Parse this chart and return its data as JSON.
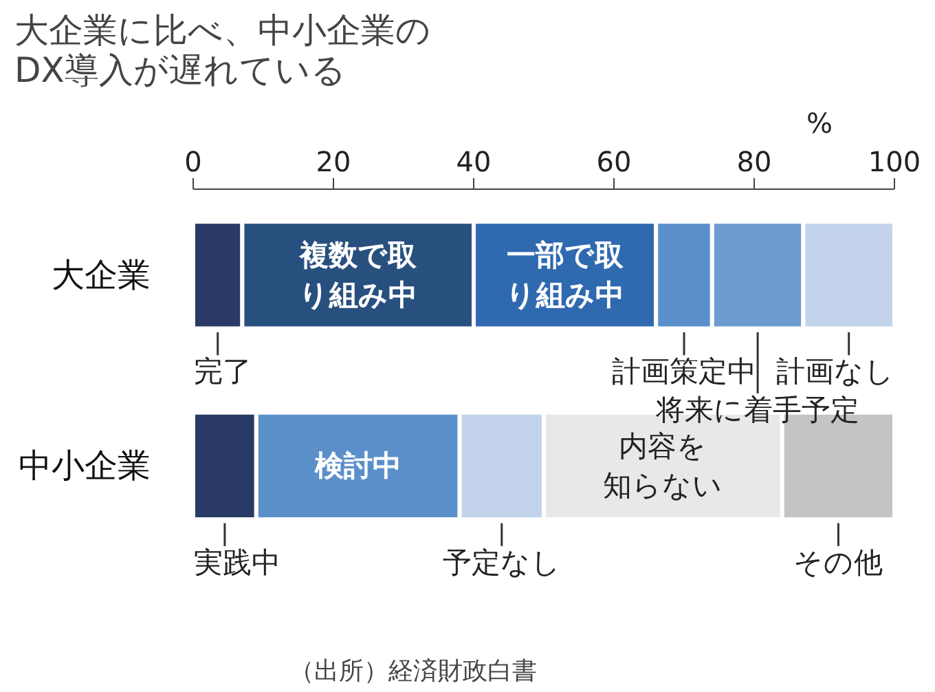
{
  "chart_data": {
    "type": "bar",
    "orientation": "horizontal",
    "stacked": true,
    "grid": false,
    "title": "大企業に比べ、中小企業の\nDX導入が遅れている",
    "xlabel": "%",
    "categories": [
      "大企業",
      "中小企業"
    ],
    "xlim": [
      0,
      100
    ],
    "xticks": [
      0,
      20,
      40,
      60,
      80,
      100
    ],
    "series": [
      {
        "name": "完了",
        "color": "#2a3a66",
        "values": [
          7,
          null
        ]
      },
      {
        "name": "複数で取り組み中",
        "color": "#28507f",
        "values": [
          33,
          null
        ]
      },
      {
        "name": "一部で取り組み中",
        "color": "#2f69b0",
        "values": [
          26,
          null
        ]
      },
      {
        "name": "計画策定中",
        "color": "#5b8fcb",
        "values": [
          8,
          null
        ]
      },
      {
        "name": "将来に着手予定",
        "color": "#6e9bd0",
        "values": [
          13,
          null
        ]
      },
      {
        "name": "計画なし",
        "color": "#c3d3ec",
        "values": [
          13,
          null
        ]
      },
      {
        "name": "実践中",
        "color": "#2a3a66",
        "values": [
          null,
          9
        ]
      },
      {
        "name": "検討中",
        "color": "#5b8fc9",
        "values": [
          null,
          29
        ]
      },
      {
        "name": "予定なし",
        "color": "#c3d3ec",
        "values": [
          null,
          12
        ]
      },
      {
        "name": "内容を知らない",
        "color": "#e8e8e8",
        "values": [
          null,
          34
        ]
      },
      {
        "name": "その他",
        "color": "#c4c4c6",
        "values": [
          null,
          16
        ]
      }
    ],
    "annotations": [
      "（出所）経済財政白書"
    ]
  }
}
